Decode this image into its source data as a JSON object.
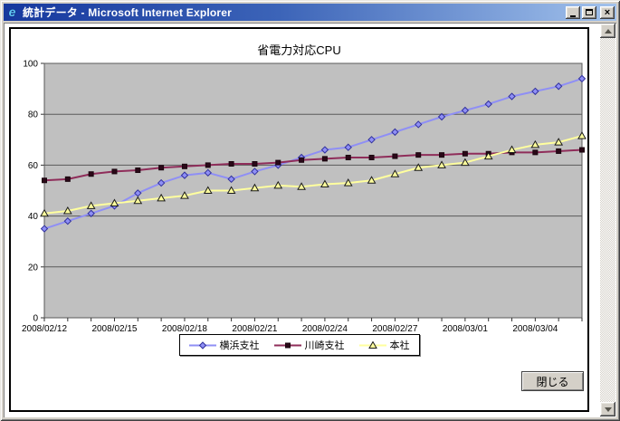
{
  "window": {
    "title": "統計データ - Microsoft Internet Explorer"
  },
  "page": {
    "close_button_label": "閉じる"
  },
  "chart_data": {
    "type": "line",
    "title": "省電力対応CPU",
    "xlabel": "",
    "ylabel": "",
    "ylim": [
      0,
      100
    ],
    "y_ticks": [
      0,
      20,
      40,
      60,
      80,
      100
    ],
    "grid": true,
    "plot_bg": "#C0C0C0",
    "legend_position": "bottom",
    "x": [
      "2008/02/12",
      "2008/02/13",
      "2008/02/14",
      "2008/02/15",
      "2008/02/16",
      "2008/02/17",
      "2008/02/18",
      "2008/02/19",
      "2008/02/20",
      "2008/02/21",
      "2008/02/22",
      "2008/02/23",
      "2008/02/24",
      "2008/02/25",
      "2008/02/26",
      "2008/02/27",
      "2008/02/28",
      "2008/02/29",
      "2008/03/01",
      "2008/03/02",
      "2008/03/03",
      "2008/03/04",
      "2008/03/05",
      "2008/03/06"
    ],
    "x_tick_labels": [
      "2008/02/12",
      "2008/02/15",
      "2008/02/18",
      "2008/02/21",
      "2008/02/24",
      "2008/02/27",
      "2008/03/01",
      "2008/03/04"
    ],
    "x_label_every": 3,
    "series": [
      {
        "name": "横浜支社",
        "color": "#8F8FF5",
        "marker": "diamond",
        "marker_fill": "#8F8FF5",
        "marker_stroke": "#31319C",
        "values": [
          35,
          38,
          41,
          44,
          49,
          53,
          56,
          57,
          54.5,
          57.5,
          60,
          63,
          66,
          67,
          70,
          73,
          76,
          79,
          81.5,
          84,
          87,
          89,
          91,
          94
        ]
      },
      {
        "name": "川崎支社",
        "color": "#8F2D5A",
        "marker": "square",
        "marker_fill": "#2A0818",
        "marker_stroke": "#1A040E",
        "values": [
          54,
          54.5,
          56.5,
          57.5,
          58,
          59,
          59.5,
          60,
          60.5,
          60.5,
          61,
          62,
          62.5,
          63,
          63,
          63.5,
          64,
          64,
          64.5,
          64.5,
          65,
          65,
          65.5,
          66
        ]
      },
      {
        "name": "本社",
        "color": "#FFFF9E",
        "marker": "triangle",
        "marker_fill": "#FFFF9E",
        "marker_stroke": "#1A1A1A",
        "values": [
          41,
          42,
          44,
          45,
          46,
          47,
          48,
          50,
          50,
          51,
          52,
          51.5,
          52.5,
          53,
          54,
          56.5,
          59,
          60,
          61,
          63.5,
          66,
          68,
          69,
          71.5
        ]
      }
    ]
  }
}
